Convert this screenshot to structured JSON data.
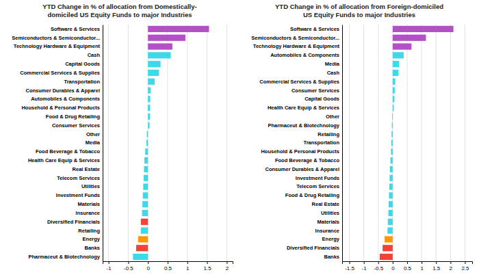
{
  "chart_data": [
    {
      "type": "bar",
      "orientation": "horizontal",
      "title": "YTD Change in % of allocation from Domestically-\ndomiciled US Equity Funds to major Industries",
      "categories": [
        "Software & Services",
        "Semiconductors & Semiconductor...",
        "Technology Hardware & Equipment",
        "Cash",
        "Capital Goods",
        "Commercial Services & Supplies",
        "Transportation",
        "Consumer Durables & Apparel",
        "Automobiles & Components",
        "Household & Personal Products",
        "Food & Drug Retailing",
        "Consumer Services",
        "Other",
        "Media",
        "Food Beverage & Tobacco",
        "Health Care Equip & Services",
        "Real Estate",
        "Telecom Services",
        "Utilities",
        "Investment Funds",
        "Materials",
        "Insurance",
        "Diversified Financials",
        "Retailing",
        "Energy",
        "Banks",
        "Pharmaceut & Biotechnology"
      ],
      "values": [
        1.55,
        0.95,
        0.62,
        0.58,
        0.32,
        0.28,
        0.17,
        0.07,
        0.06,
        0.055,
        0.05,
        0.04,
        -0.03,
        -0.04,
        -0.07,
        -0.09,
        -0.1,
        -0.11,
        -0.12,
        -0.13,
        -0.14,
        -0.15,
        -0.18,
        -0.18,
        -0.25,
        -0.3,
        -0.38
      ],
      "colors": [
        "#b44fc8",
        "#b44fc8",
        "#b44fc8",
        "#3fd8e8",
        "#3fd8e8",
        "#3fd8e8",
        "#3fd8e8",
        "#3fd8e8",
        "#3fd8e8",
        "#3fd8e8",
        "#3fd8e8",
        "#3fd8e8",
        "#3fd8e8",
        "#3fd8e8",
        "#3fd8e8",
        "#3fd8e8",
        "#3fd8e8",
        "#3fd8e8",
        "#3fd8e8",
        "#3fd8e8",
        "#3fd8e8",
        "#3fd8e8",
        "#f44336",
        "#3fd8e8",
        "#ff9800",
        "#f44336",
        "#3fd8e8"
      ],
      "xlim": [
        -1.15,
        2.15
      ],
      "xticks": [
        -1,
        -0.5,
        0,
        0.5,
        1,
        1.5,
        2
      ],
      "grid": true
    },
    {
      "type": "bar",
      "orientation": "horizontal",
      "title": "YTD Change in % of allocation from Foreign-domiciled\nUS Equity Funds to major Industries",
      "categories": [
        "Software & Services",
        "Semiconductors & Semiconductor...",
        "Technology Hardware & Equipment",
        "Automobiles & Components",
        "Media",
        "Cash",
        "Commercial Services & Supplies",
        "Consumer Services",
        "Capital Goods",
        "Health Care Equip & Services",
        "Other",
        "Pharmaceut & Biotechnology",
        "Retailing",
        "Transportation",
        "Household & Personal Products",
        "Food Beverage & Tobacco",
        "Consumer Durables & Apparel",
        "Investment Funds",
        "Telecom Services",
        "Food & Drug Retailing",
        "Real Estate",
        "Utilities",
        "Materials",
        "Insurance",
        "Energy",
        "Diversified Financials",
        "Banks"
      ],
      "values": [
        2.1,
        1.15,
        0.65,
        0.38,
        0.22,
        0.2,
        0.09,
        0.07,
        0.06,
        0.04,
        -0.02,
        -0.03,
        -0.04,
        -0.05,
        -0.06,
        -0.08,
        -0.1,
        -0.11,
        -0.12,
        -0.13,
        -0.14,
        -0.15,
        -0.17,
        -0.18,
        -0.28,
        -0.35,
        -0.45
      ],
      "colors": [
        "#b44fc8",
        "#b44fc8",
        "#b44fc8",
        "#3fd8e8",
        "#3fd8e8",
        "#3fd8e8",
        "#3fd8e8",
        "#3fd8e8",
        "#3fd8e8",
        "#3fd8e8",
        "#3fd8e8",
        "#3fd8e8",
        "#3fd8e8",
        "#3fd8e8",
        "#3fd8e8",
        "#3fd8e8",
        "#3fd8e8",
        "#3fd8e8",
        "#3fd8e8",
        "#3fd8e8",
        "#3fd8e8",
        "#3fd8e8",
        "#3fd8e8",
        "#3fd8e8",
        "#ff9800",
        "#f44336",
        "#f44336"
      ],
      "xlim": [
        -1.75,
        2.75
      ],
      "xticks": [
        -1.5,
        -1,
        -0.5,
        0,
        0.5,
        1,
        1.5,
        2,
        2.5
      ],
      "grid": true
    }
  ]
}
